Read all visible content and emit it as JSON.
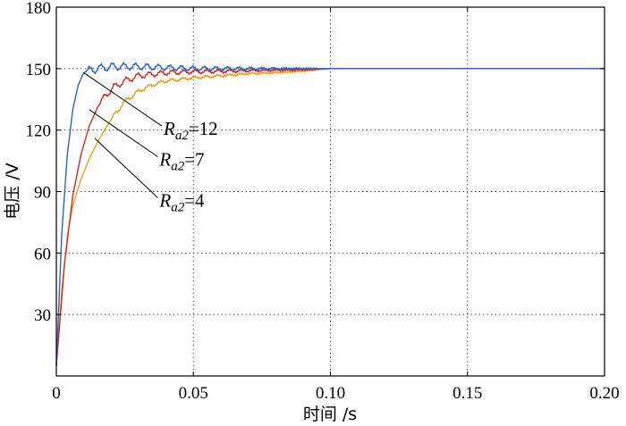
{
  "chart_data": {
    "type": "line",
    "xlabel": "时间 /s",
    "ylabel": "电压 /V",
    "xlim": [
      0,
      0.2
    ],
    "ylim": [
      0,
      180
    ],
    "x_ticks": [
      {
        "value": 0,
        "label": "0"
      },
      {
        "value": 0.05,
        "label": "0.05"
      },
      {
        "value": 0.1,
        "label": "0.10"
      },
      {
        "value": 0.15,
        "label": "0.15"
      },
      {
        "value": 0.2,
        "label": "0.20"
      }
    ],
    "y_ticks": [
      {
        "value": 30,
        "label": "30"
      },
      {
        "value": 60,
        "label": "60"
      },
      {
        "value": 90,
        "label": "90"
      },
      {
        "value": 120,
        "label": "120"
      },
      {
        "value": 150,
        "label": "150"
      },
      {
        "value": 180,
        "label": "180"
      }
    ],
    "grid": true,
    "series": [
      {
        "annotation": {
          "var": "R",
          "sub": "a2",
          "eq": "=12"
        },
        "color": "#2a64c8",
        "points": [
          [
            0,
            5
          ],
          [
            0.002,
            70
          ],
          [
            0.004,
            108
          ],
          [
            0.006,
            130
          ],
          [
            0.008,
            142
          ],
          [
            0.01,
            148
          ],
          [
            0.012,
            149
          ],
          [
            0.015,
            150
          ],
          [
            0.02,
            151
          ],
          [
            0.03,
            151
          ],
          [
            0.04,
            150.5
          ],
          [
            0.05,
            150
          ],
          [
            0.07,
            150
          ],
          [
            0.09,
            150
          ],
          [
            0.1,
            150
          ],
          [
            0.2,
            150
          ]
        ],
        "ripple": {
          "amp": 1.8,
          "period": 0.0042,
          "decay_end": 0.095,
          "start": 0.011
        }
      },
      {
        "annotation": {
          "var": "R",
          "sub": "a2",
          "eq": "=7"
        },
        "color": "#d42a22",
        "points": [
          [
            0,
            5
          ],
          [
            0.003,
            55
          ],
          [
            0.006,
            88
          ],
          [
            0.009,
            108
          ],
          [
            0.012,
            122
          ],
          [
            0.015,
            131
          ],
          [
            0.018,
            137
          ],
          [
            0.021,
            141
          ],
          [
            0.025,
            144
          ],
          [
            0.03,
            146.5
          ],
          [
            0.04,
            148
          ],
          [
            0.05,
            148.5
          ],
          [
            0.07,
            149
          ],
          [
            0.09,
            149.5
          ],
          [
            0.1,
            150
          ],
          [
            0.2,
            150
          ]
        ],
        "ripple": {
          "amp": 1.5,
          "period": 0.0042,
          "decay_end": 0.095,
          "start": 0.016
        }
      },
      {
        "annotation": {
          "var": "R",
          "sub": "a2",
          "eq": "=4"
        },
        "color": "#e8a21c",
        "points": [
          [
            0,
            5
          ],
          [
            0.002,
            42
          ],
          [
            0.004,
            68
          ],
          [
            0.006,
            83
          ],
          [
            0.009,
            96
          ],
          [
            0.012,
            106
          ],
          [
            0.015,
            114
          ],
          [
            0.018,
            121
          ],
          [
            0.021,
            127
          ],
          [
            0.025,
            134
          ],
          [
            0.03,
            139
          ],
          [
            0.035,
            142
          ],
          [
            0.04,
            144
          ],
          [
            0.05,
            145.5
          ],
          [
            0.06,
            146.5
          ],
          [
            0.07,
            147.5
          ],
          [
            0.08,
            148
          ],
          [
            0.09,
            148.8
          ],
          [
            0.1,
            150
          ],
          [
            0.2,
            150
          ]
        ],
        "ripple": {
          "amp": 0.9,
          "period": 0.0042,
          "decay_end": 0.095,
          "start": 0.02
        }
      }
    ],
    "annotations": [
      {
        "series": 0,
        "point": [
          0.01,
          148
        ],
        "label_at": [
          0.0385,
          122
        ]
      },
      {
        "series": 1,
        "point": [
          0.012,
          130
        ],
        "label_at": [
          0.037,
          107
        ]
      },
      {
        "series": 2,
        "point": [
          0.014,
          116
        ],
        "label_at": [
          0.037,
          87
        ]
      }
    ]
  }
}
